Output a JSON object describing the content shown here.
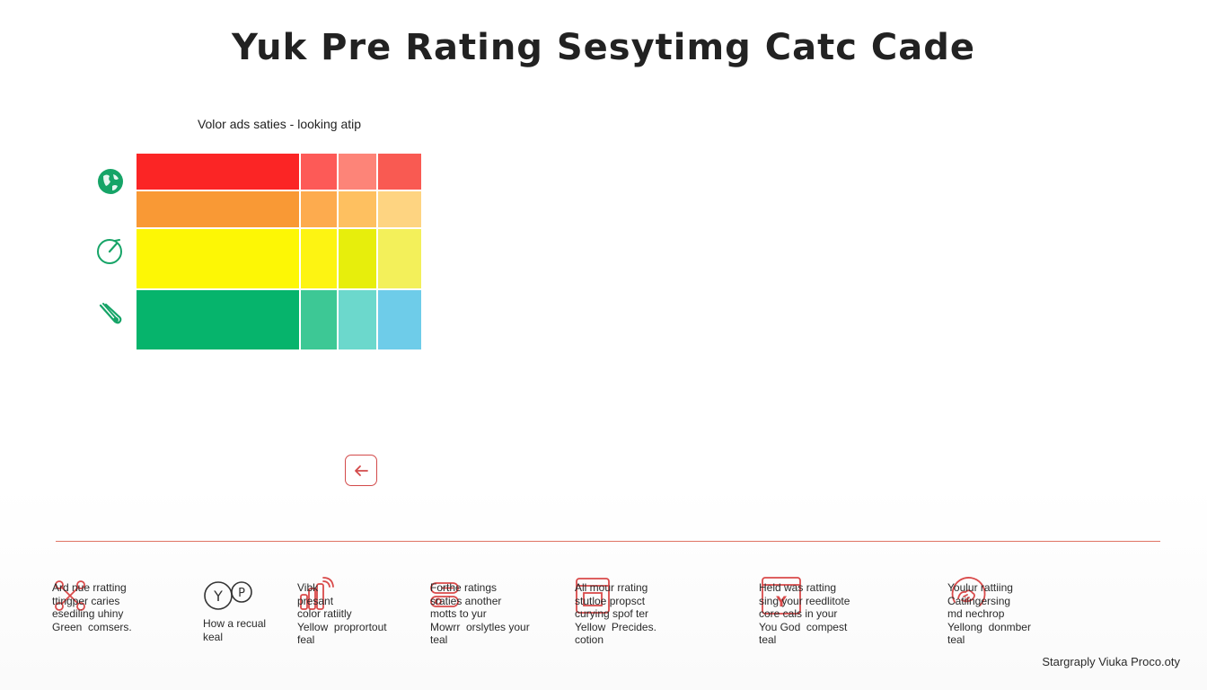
{
  "title": "Yuk Pre Rating Sesytimg Catc Cade",
  "caption": "Volor ads saties - looking atip",
  "colors": {
    "rows": [
      [
        "#fb2525",
        "#fd5a57",
        "#fd8478",
        "#f95a52"
      ],
      [
        "#f99935",
        "#fdab4e",
        "#fec060",
        "#fed481"
      ],
      [
        "#fdf705",
        "#fdf412",
        "#e7ee0c",
        "#f3f05a"
      ],
      [
        "#06b46c",
        "#3dc895",
        "#6cd8cc",
        "#6ecce9"
      ]
    ],
    "icon_green": "#16a467",
    "icon_red": "#d94a4a",
    "divider": "#e07565"
  },
  "side_icons": [
    "globe-icon",
    "gauge-icon",
    "clip-icon"
  ],
  "back_button": {
    "icon": "arrow-left-icon"
  },
  "legend": [
    {
      "icon": "network-nodes-icon",
      "text": "Ard nue rratting\nttingper caries\nesediling uhiny\nGreen  comsers."
    },
    {
      "icon": "yp-bubble-icon",
      "text": "How a recual\nkeal"
    },
    {
      "icon": "signal-bars-icon",
      "text": "Vibk\npresant\ncolor ratiitly\nYellow  proprortout\nfeal"
    },
    {
      "icon": "link-toggle-icon",
      "text": "Forthe ratings\nsraties another\nmotts to yur\nMowrr  orslytles your\nteal"
    },
    {
      "icon": "document-frame-icon",
      "text": "All mour rrating\nstutloe propsct\ncurying spof ter\nYellow  Precides.\ncotion"
    },
    {
      "icon": "y-document-icon",
      "text": "Held was ratting\nsing your reedlitote\ncore cals in your\nYou God  compest\nteal"
    },
    {
      "icon": "hand-circle-icon",
      "text": "Youlur rattiing\nCatiingersing\nmd nechrop\nYellong  donmber\nteal"
    }
  ],
  "footer_credit": "Stargraply Viuka Proco.oty"
}
